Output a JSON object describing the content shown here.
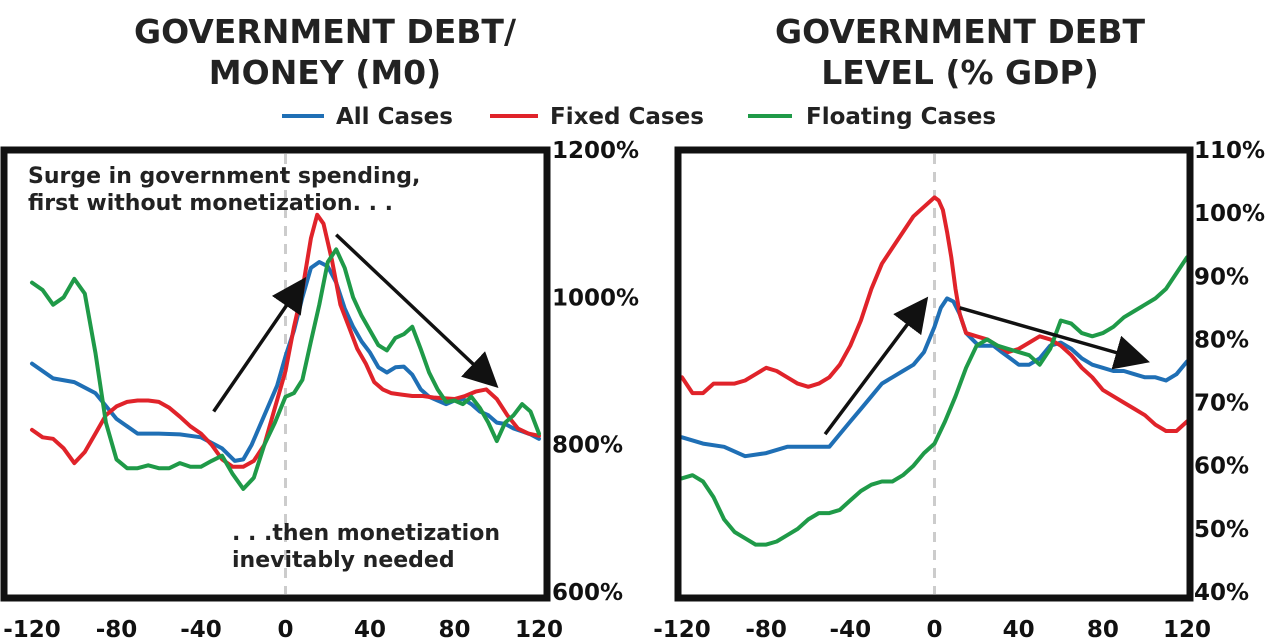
{
  "legend": {
    "items": [
      {
        "label": "All Cases",
        "color": "#1f6fb5"
      },
      {
        "label": "Fixed Cases",
        "color": "#e0232a"
      },
      {
        "label": "Floating Cases",
        "color": "#1f9a48"
      }
    ]
  },
  "chart_data": [
    {
      "type": "line",
      "title_lines": [
        "GOVERNMENT DEBT/",
        "MONEY (M0)"
      ],
      "x_ticks": [
        "-120",
        "-80",
        "-40",
        "0",
        "40",
        "80",
        "120"
      ],
      "y_ticks": [
        "600%",
        "800%",
        "1000%",
        "1200%"
      ],
      "xlim": [
        -120,
        120
      ],
      "ylim": [
        600,
        1200
      ],
      "y_axis_side": "right",
      "zero_line": "dashed vertical at x=0",
      "annotations": [
        {
          "lines": [
            "Surge in government spending,",
            "first without monetization. . ."
          ]
        },
        {
          "lines": [
            ". . .then monetization",
            "inevitably needed"
          ]
        }
      ],
      "arrows": [
        {
          "from": [
            -34,
            845
          ],
          "to": [
            6,
            1012
          ]
        },
        {
          "from": [
            24,
            1085
          ],
          "to": [
            96,
            890
          ]
        }
      ],
      "series": [
        {
          "name": "All Cases",
          "color": "#1f6fb5",
          "x": [
            -120,
            -110,
            -100,
            -90,
            -80,
            -70,
            -60,
            -50,
            -40,
            -30,
            -24,
            -20,
            -16,
            -10,
            -4,
            0,
            4,
            8,
            12,
            16,
            20,
            24,
            28,
            32,
            36,
            40,
            44,
            48,
            52,
            56,
            60,
            64,
            68,
            72,
            76,
            80,
            84,
            88,
            92,
            96,
            100,
            104,
            108,
            112,
            116,
            120
          ],
          "y": [
            910,
            890,
            885,
            870,
            835,
            815,
            815,
            814,
            810,
            795,
            778,
            780,
            800,
            840,
            880,
            920,
            955,
            1000,
            1040,
            1048,
            1042,
            1020,
            985,
            960,
            940,
            925,
            905,
            898,
            905,
            906,
            895,
            875,
            865,
            860,
            855,
            860,
            862,
            855,
            845,
            840,
            830,
            828,
            822,
            818,
            814,
            808
          ]
        },
        {
          "name": "Fixed Cases",
          "color": "#e0232a",
          "x": [
            -120,
            -115,
            -110,
            -105,
            -100,
            -95,
            -90,
            -85,
            -80,
            -75,
            -70,
            -65,
            -60,
            -55,
            -50,
            -45,
            -40,
            -35,
            -30,
            -25,
            -20,
            -15,
            -10,
            -5,
            0,
            4,
            8,
            12,
            15,
            18,
            22,
            26,
            30,
            34,
            38,
            42,
            46,
            50,
            55,
            60,
            65,
            70,
            75,
            80,
            85,
            90,
            95,
            100,
            105,
            110,
            115,
            120
          ],
          "y": [
            820,
            810,
            808,
            795,
            775,
            790,
            815,
            840,
            852,
            858,
            860,
            860,
            858,
            850,
            838,
            825,
            815,
            800,
            780,
            770,
            770,
            778,
            800,
            850,
            900,
            960,
            1010,
            1080,
            1112,
            1100,
            1050,
            990,
            960,
            930,
            910,
            885,
            875,
            870,
            868,
            866,
            866,
            864,
            863,
            862,
            866,
            872,
            875,
            862,
            840,
            822,
            815,
            812
          ]
        },
        {
          "name": "Floating Cases",
          "color": "#1f9a48",
          "x": [
            -120,
            -115,
            -110,
            -105,
            -100,
            -95,
            -90,
            -85,
            -80,
            -75,
            -70,
            -65,
            -60,
            -55,
            -50,
            -45,
            -40,
            -35,
            -30,
            -25,
            -20,
            -15,
            -10,
            -5,
            0,
            4,
            8,
            12,
            16,
            20,
            24,
            28,
            32,
            36,
            40,
            44,
            48,
            52,
            56,
            60,
            64,
            68,
            72,
            76,
            80,
            84,
            88,
            92,
            96,
            100,
            104,
            108,
            112,
            116,
            120
          ],
          "y": [
            1020,
            1010,
            990,
            1000,
            1025,
            1005,
            925,
            830,
            780,
            768,
            768,
            772,
            768,
            768,
            775,
            770,
            770,
            778,
            785,
            760,
            740,
            755,
            800,
            830,
            865,
            870,
            888,
            940,
            990,
            1048,
            1065,
            1040,
            1000,
            975,
            955,
            935,
            928,
            945,
            950,
            960,
            930,
            898,
            875,
            858,
            860,
            855,
            865,
            850,
            830,
            805,
            830,
            840,
            855,
            845,
            815
          ]
        }
      ]
    },
    {
      "type": "line",
      "title_lines": [
        "GOVERNMENT DEBT",
        "LEVEL (% GDP)"
      ],
      "x_ticks": [
        "-120",
        "-80",
        "-40",
        "0",
        "40",
        "80",
        "120"
      ],
      "y_ticks": [
        "40%",
        "50%",
        "60%",
        "70%",
        "80%",
        "90%",
        "100%",
        "110%"
      ],
      "xlim": [
        -120,
        120
      ],
      "ylim": [
        40,
        110
      ],
      "y_axis_side": "right",
      "zero_line": "dashed vertical at x=0",
      "arrows": [
        {
          "from": [
            -52,
            65
          ],
          "to": [
            -7,
            85
          ]
        },
        {
          "from": [
            12,
            85
          ],
          "to": [
            96,
            77
          ]
        }
      ],
      "series": [
        {
          "name": "All Cases",
          "color": "#1f6fb5",
          "x": [
            -120,
            -110,
            -100,
            -90,
            -80,
            -70,
            -60,
            -55,
            -50,
            -45,
            -40,
            -35,
            -30,
            -25,
            -20,
            -15,
            -10,
            -5,
            0,
            3,
            6,
            9,
            12,
            15,
            18,
            21,
            24,
            28,
            32,
            36,
            40,
            45,
            50,
            55,
            60,
            65,
            70,
            75,
            80,
            85,
            90,
            95,
            100,
            105,
            110,
            115,
            120
          ],
          "y": [
            64.5,
            63.5,
            63,
            61.5,
            62,
            63,
            63,
            63,
            63,
            65,
            67,
            69,
            71,
            73,
            74,
            75,
            76,
            78,
            82,
            85,
            86.5,
            86,
            84,
            81,
            80,
            79,
            79,
            79,
            78,
            77,
            76,
            76,
            77,
            79,
            79.5,
            78.5,
            77,
            76,
            75.5,
            75,
            75,
            74.5,
            74,
            74,
            73.5,
            74.5,
            76.5
          ]
        },
        {
          "name": "Fixed Cases",
          "color": "#e0232a",
          "x": [
            -120,
            -115,
            -110,
            -105,
            -100,
            -95,
            -90,
            -85,
            -80,
            -75,
            -70,
            -65,
            -60,
            -55,
            -50,
            -45,
            -40,
            -35,
            -30,
            -25,
            -20,
            -15,
            -10,
            -5,
            0,
            2,
            4,
            6,
            8,
            10,
            12,
            15,
            20,
            25,
            30,
            35,
            40,
            45,
            50,
            55,
            60,
            65,
            70,
            75,
            80,
            85,
            90,
            95,
            100,
            105,
            110,
            115,
            120
          ],
          "y": [
            74,
            71.5,
            71.5,
            73,
            73,
            73,
            73.5,
            74.5,
            75.5,
            75,
            74,
            73,
            72.5,
            73,
            74,
            76,
            79,
            83,
            88,
            92,
            94.5,
            97,
            99.5,
            101,
            102.5,
            102,
            100.5,
            97,
            93,
            88,
            84,
            81,
            80.5,
            80,
            79,
            78,
            78.5,
            79.5,
            80.5,
            80,
            79,
            77.5,
            75.5,
            74,
            72,
            71,
            70,
            69,
            68,
            66.5,
            65.5,
            65.5,
            67
          ]
        },
        {
          "name": "Floating Cases",
          "color": "#1f9a48",
          "x": [
            -120,
            -115,
            -110,
            -105,
            -100,
            -95,
            -90,
            -85,
            -80,
            -75,
            -70,
            -65,
            -60,
            -55,
            -50,
            -45,
            -40,
            -35,
            -30,
            -25,
            -20,
            -15,
            -10,
            -5,
            0,
            5,
            10,
            15,
            20,
            25,
            30,
            35,
            40,
            45,
            50,
            55,
            60,
            65,
            70,
            75,
            80,
            85,
            90,
            95,
            100,
            105,
            110,
            115,
            120
          ],
          "y": [
            58,
            58.5,
            57.5,
            55,
            51.5,
            49.5,
            48.5,
            47.5,
            47.5,
            48,
            49,
            50,
            51.5,
            52.5,
            52.5,
            53,
            54.5,
            56,
            57,
            57.5,
            57.5,
            58.5,
            60,
            62,
            63.5,
            67,
            71,
            75.5,
            79,
            80,
            79,
            78.5,
            78,
            77.5,
            76,
            78.5,
            83,
            82.5,
            81,
            80.5,
            81,
            82,
            83.5,
            84.5,
            85.5,
            86.5,
            88,
            90.5,
            93
          ]
        }
      ]
    }
  ]
}
